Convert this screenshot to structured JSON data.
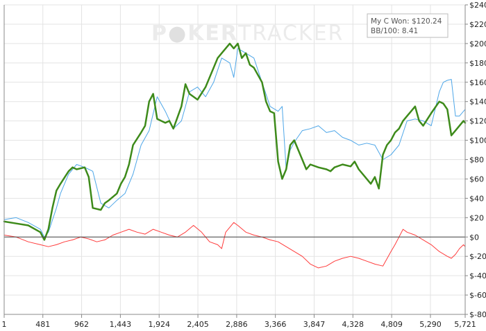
{
  "chart_data": {
    "type": "line",
    "title": "",
    "xlabel": "",
    "ylabel": "",
    "watermark": {
      "part1": "P",
      "part2": "KER",
      "part3": "TRACKER"
    },
    "legend_box": {
      "position": "top-right",
      "line1": "My C Won: $120.24",
      "line2": "BB/100: 8.41"
    },
    "x_ticks": [
      "1",
      "481",
      "962",
      "1,443",
      "1,924",
      "2,405",
      "2,886",
      "3,366",
      "3,847",
      "4,328",
      "4,809",
      "5,290",
      "5,721"
    ],
    "x_tick_values": [
      1,
      481,
      962,
      1443,
      1924,
      2405,
      2886,
      3366,
      3847,
      4328,
      4809,
      5290,
      5721
    ],
    "xlim": [
      1,
      5721
    ],
    "y_ticks": [
      "$240",
      "$220",
      "$200",
      "$180",
      "$160",
      "$140",
      "$120",
      "$100",
      "$80",
      "$60",
      "$40",
      "$20",
      "$0",
      "$-20",
      "$-40",
      "$-60",
      "$-80"
    ],
    "y_tick_values": [
      240,
      220,
      200,
      180,
      160,
      140,
      120,
      100,
      80,
      60,
      40,
      20,
      0,
      -20,
      -40,
      -60,
      -80
    ],
    "ylim": [
      -80,
      240
    ],
    "grid": true,
    "zero_line": true,
    "series": [
      {
        "color": "#4da6e8",
        "width": 1,
        "x": [
          1,
          150,
          300,
          450,
          500,
          550,
          650,
          700,
          800,
          900,
          1000,
          1100,
          1200,
          1300,
          1400,
          1500,
          1600,
          1700,
          1800,
          1900,
          2000,
          2100,
          2200,
          2300,
          2400,
          2500,
          2600,
          2700,
          2800,
          2850,
          2900,
          3000,
          3100,
          3200,
          3300,
          3400,
          3450,
          3500,
          3550,
          3600,
          3700,
          3800,
          3900,
          4000,
          4100,
          4200,
          4300,
          4400,
          4500,
          4600,
          4700,
          4800,
          4900,
          5000,
          5100,
          5200,
          5300,
          5400,
          5450,
          5500,
          5550,
          5600,
          5650,
          5700,
          5721
        ],
        "values": [
          18,
          20,
          15,
          8,
          0,
          5,
          30,
          45,
          65,
          75,
          72,
          68,
          35,
          30,
          38,
          45,
          65,
          95,
          110,
          145,
          130,
          112,
          120,
          150,
          155,
          145,
          160,
          185,
          180,
          165,
          195,
          190,
          185,
          160,
          135,
          130,
          135,
          70,
          90,
          98,
          110,
          112,
          115,
          108,
          110,
          103,
          100,
          95,
          97,
          95,
          80,
          85,
          95,
          120,
          122,
          120,
          115,
          150,
          160,
          162,
          163,
          125,
          125,
          130,
          132
        ]
      },
      {
        "color": "#3d8a1a",
        "width": 2.5,
        "x": [
          1,
          150,
          300,
          450,
          500,
          550,
          600,
          650,
          700,
          800,
          850,
          900,
          1000,
          1050,
          1100,
          1200,
          1250,
          1300,
          1400,
          1450,
          1500,
          1550,
          1600,
          1700,
          1750,
          1800,
          1850,
          1900,
          2000,
          2050,
          2100,
          2200,
          2250,
          2300,
          2400,
          2500,
          2600,
          2650,
          2700,
          2800,
          2850,
          2900,
          2950,
          3000,
          3050,
          3100,
          3200,
          3250,
          3300,
          3350,
          3400,
          3450,
          3500,
          3550,
          3600,
          3700,
          3750,
          3800,
          3900,
          4000,
          4050,
          4100,
          4200,
          4300,
          4350,
          4400,
          4500,
          4550,
          4600,
          4650,
          4700,
          4750,
          4800,
          4850,
          4900,
          4950,
          5000,
          5050,
          5100,
          5150,
          5200,
          5300,
          5400,
          5450,
          5500,
          5550,
          5600,
          5650,
          5700,
          5721
        ],
        "values": [
          16,
          14,
          12,
          5,
          -3,
          8,
          30,
          48,
          55,
          68,
          72,
          70,
          72,
          62,
          30,
          28,
          35,
          38,
          45,
          55,
          62,
          75,
          95,
          108,
          115,
          140,
          148,
          122,
          118,
          120,
          112,
          135,
          158,
          148,
          142,
          155,
          175,
          185,
          190,
          200,
          195,
          200,
          185,
          190,
          178,
          175,
          160,
          140,
          130,
          128,
          78,
          60,
          70,
          95,
          100,
          80,
          70,
          75,
          72,
          70,
          68,
          72,
          75,
          73,
          78,
          70,
          60,
          55,
          62,
          50,
          85,
          95,
          100,
          108,
          112,
          120,
          125,
          130,
          135,
          120,
          115,
          128,
          140,
          138,
          132,
          105,
          110,
          115,
          120,
          118
        ]
      },
      {
        "color": "#ff3b3b",
        "width": 1,
        "x": [
          1,
          150,
          300,
          450,
          550,
          650,
          750,
          850,
          950,
          1050,
          1150,
          1250,
          1350,
          1450,
          1550,
          1650,
          1750,
          1850,
          1950,
          2050,
          2150,
          2250,
          2350,
          2450,
          2550,
          2650,
          2700,
          2750,
          2800,
          2850,
          2900,
          3000,
          3100,
          3200,
          3300,
          3400,
          3500,
          3600,
          3700,
          3800,
          3900,
          4000,
          4100,
          4200,
          4300,
          4400,
          4500,
          4600,
          4700,
          4800,
          4850,
          4900,
          4950,
          5000,
          5100,
          5200,
          5300,
          5400,
          5500,
          5550,
          5600,
          5650,
          5700,
          5721
        ],
        "values": [
          2,
          0,
          -5,
          -8,
          -10,
          -8,
          -5,
          -3,
          0,
          -2,
          -5,
          -3,
          2,
          5,
          8,
          5,
          3,
          8,
          5,
          2,
          0,
          5,
          12,
          5,
          -5,
          -8,
          -12,
          5,
          10,
          15,
          12,
          5,
          2,
          0,
          -3,
          -5,
          -10,
          -15,
          -20,
          -28,
          -32,
          -30,
          -25,
          -22,
          -20,
          -22,
          -25,
          -28,
          -30,
          -15,
          -8,
          0,
          8,
          5,
          2,
          -3,
          -8,
          -15,
          -20,
          -22,
          -18,
          -12,
          -8,
          -10
        ]
      }
    ]
  }
}
